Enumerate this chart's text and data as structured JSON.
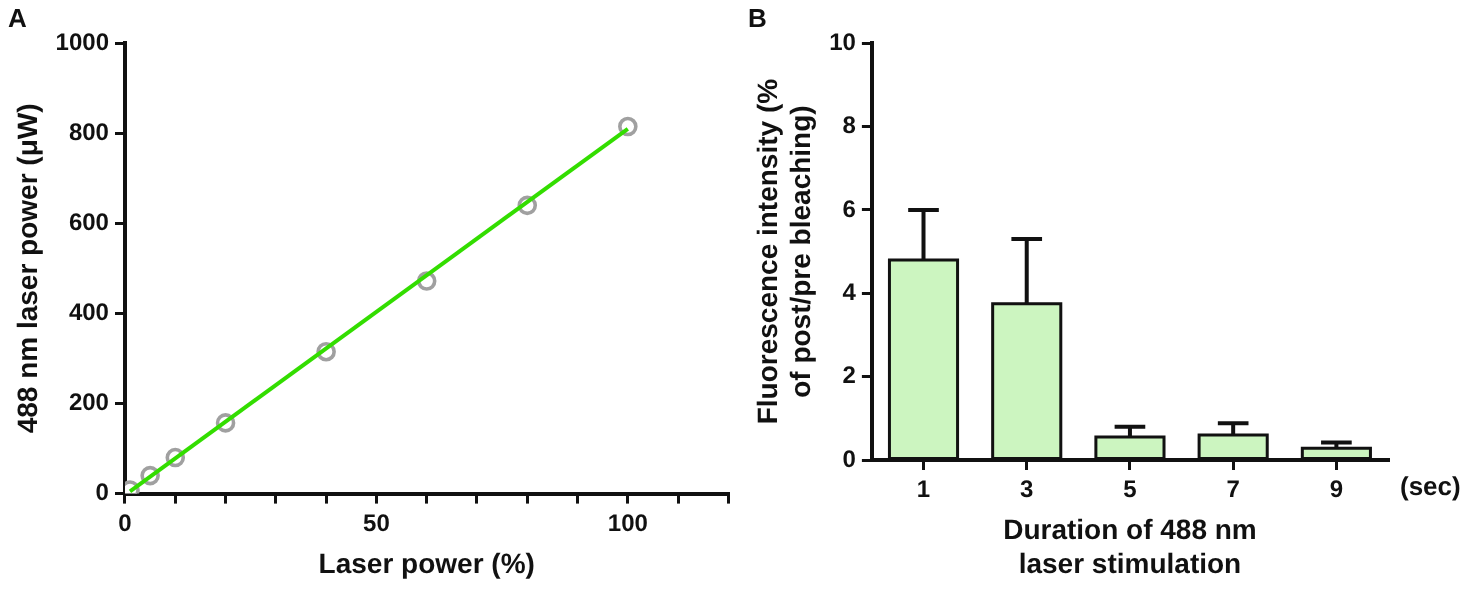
{
  "chart_data": [
    {
      "type": "scatter",
      "title": "A",
      "xlabel": "Laser power (%)",
      "ylabel": "488 nm laser power (μW)",
      "xlim": [
        0,
        120
      ],
      "xticks": [
        0,
        {
          "value": 10,
          "label": null
        },
        {
          "value": 20,
          "label": null
        },
        {
          "value": 30,
          "label": null
        },
        {
          "value": 40,
          "label": null
        },
        50,
        {
          "value": 60,
          "label": null
        },
        {
          "value": 70,
          "label": null
        },
        {
          "value": 80,
          "label": null
        },
        {
          "value": 90,
          "label": null
        },
        100,
        {
          "value": 110,
          "label": null
        },
        {
          "value": 120,
          "label": null
        }
      ],
      "ylim": [
        0,
        1000
      ],
      "yticks": [
        0,
        200,
        400,
        600,
        800,
        1000
      ],
      "grid": false,
      "legend": false,
      "marker": "circle",
      "series": [
        {
          "type": "line",
          "color": "#33dd00",
          "marker": "none",
          "x": [
            1,
            100
          ],
          "values": [
            5,
            810
          ]
        },
        {
          "type": "scatter",
          "color": "#a0a0a0",
          "x": [
            1,
            5,
            10,
            20,
            40,
            60,
            80,
            100
          ],
          "values": [
            8,
            40,
            80,
            157,
            315,
            472,
            640,
            815
          ]
        }
      ]
    },
    {
      "type": "bar",
      "title": "B",
      "xlabel": "Duration of 488 nm laser stimulation",
      "ylabel": "Fluorescence intensity (% of post/pre bleaching)",
      "categories": [
        "1",
        "3",
        "5",
        "7",
        "9"
      ],
      "values": [
        4.8,
        3.75,
        0.55,
        0.6,
        0.28
      ],
      "color": "#ccf5c0",
      "errors": [
        [
          4.8,
          6.0
        ],
        [
          3.75,
          5.3
        ],
        [
          0.55,
          0.8
        ],
        [
          0.6,
          0.88
        ],
        [
          0.28,
          0.42
        ]
      ],
      "ylim": [
        0,
        10
      ],
      "yticks": [
        0,
        2,
        4,
        6,
        8,
        10
      ],
      "grid": false,
      "legend": false,
      "annotations": [
        "(sec)"
      ]
    }
  ]
}
